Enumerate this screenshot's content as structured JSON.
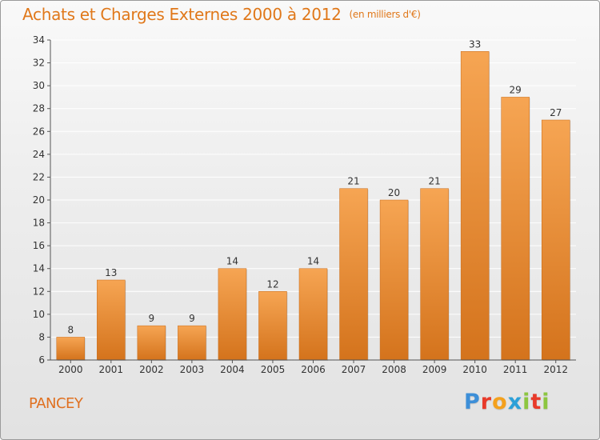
{
  "title": "Achats et Charges Externes 2000 à 2012",
  "unit": "(en milliers d'€)",
  "commune": "PANCEY",
  "logo": {
    "text": "Proxiti",
    "letters": [
      "P",
      "r",
      "o",
      "x",
      "i",
      "t",
      "i"
    ],
    "colors": [
      "#3d8fd8",
      "#e83a2a",
      "#f4a11d",
      "#2ca0d8",
      "#8cc63f",
      "#e83a2a",
      "#8cc63f"
    ]
  },
  "colors": {
    "bar_top": "#f6a553",
    "bar_bottom": "#d4731c",
    "grid": "#ffffff",
    "axis": "#555555",
    "text": "#333333"
  },
  "chart_data": {
    "type": "bar",
    "title": "Achats et Charges Externes 2000 à 2012",
    "subtitle": "(en milliers d'€)",
    "categories": [
      "2000",
      "2001",
      "2002",
      "2003",
      "2004",
      "2005",
      "2006",
      "2007",
      "2008",
      "2009",
      "2010",
      "2011",
      "2012"
    ],
    "values": [
      8,
      13,
      9,
      9,
      14,
      12,
      14,
      21,
      20,
      21,
      33,
      29,
      27
    ],
    "ylim": [
      6,
      34
    ],
    "yticks": [
      6,
      8,
      10,
      12,
      14,
      16,
      18,
      20,
      22,
      24,
      26,
      28,
      30,
      32,
      34
    ],
    "xlabel": "",
    "ylabel": "",
    "grid": true,
    "legend": "none"
  }
}
